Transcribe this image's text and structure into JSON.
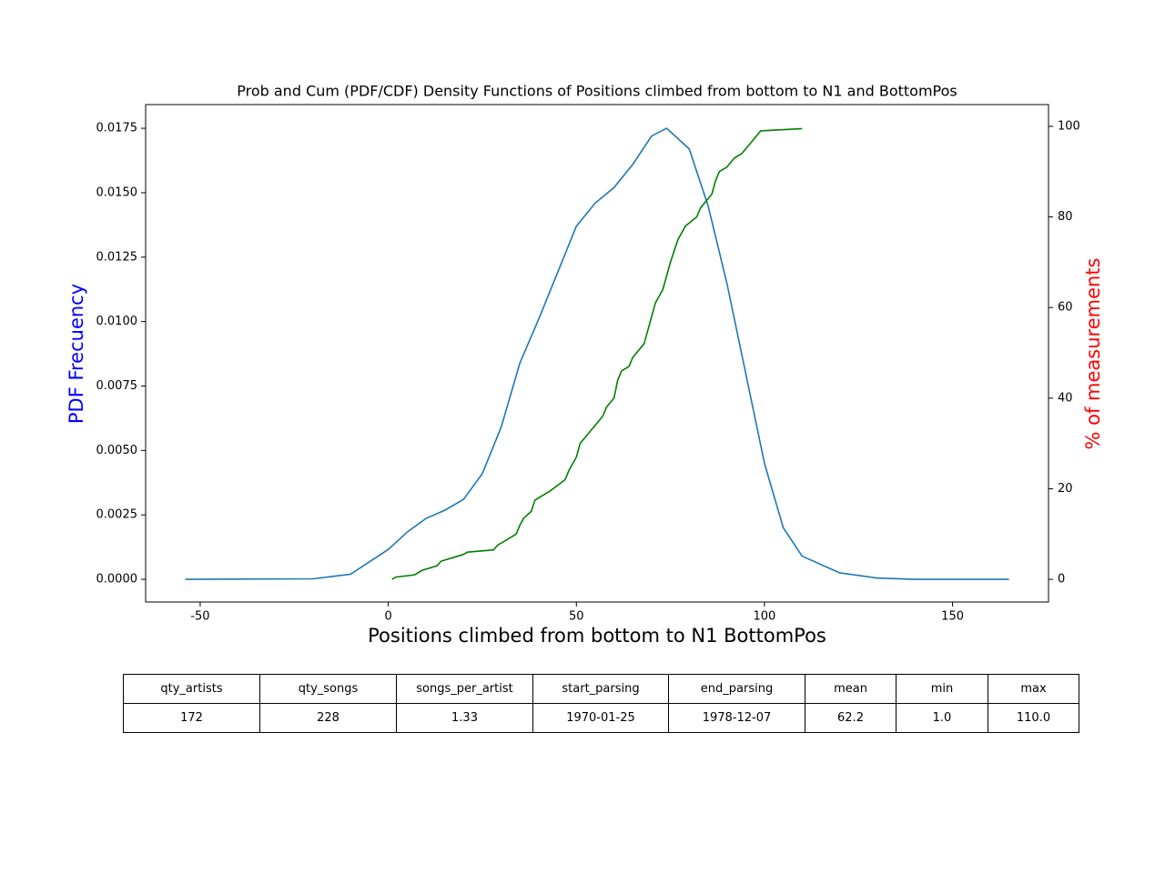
{
  "chart_data": {
    "type": "line",
    "title": "Prob and Cum (PDF/CDF) Density Functions of Positions climbed from bottom to N1 and BottomPos",
    "x_label": "Positions climbed from bottom to N1 BottomPos",
    "y_label": "PDF Frecuency",
    "y_label_color": "#0000ff",
    "y2_label": "% of measurements",
    "y2_label_color": "#ff0000",
    "xlim": [
      -64.5,
      175.5
    ],
    "xticks": [
      -50,
      0,
      50,
      100,
      150
    ],
    "ylim": [
      -0.00088,
      0.01842
    ],
    "yticks": [
      {
        "value": 0,
        "label": "0.0000"
      },
      {
        "value": 0.0025,
        "label": "0.0025"
      },
      {
        "value": 0.005,
        "label": "0.0050"
      },
      {
        "value": 0.0075,
        "label": "0.0075"
      },
      {
        "value": 0.01,
        "label": "0.0100"
      },
      {
        "value": 0.0125,
        "label": "0.0125"
      },
      {
        "value": 0.015,
        "label": "0.0150"
      },
      {
        "value": 0.0175,
        "label": "0.0175"
      }
    ],
    "y2lim": [
      -5,
      104.8
    ],
    "y2ticks": [
      0,
      20,
      40,
      60,
      80,
      100
    ],
    "series": [
      {
        "color": "#1f77b4",
        "x": [
          -54,
          -20,
          -10,
          0,
          5,
          10,
          15,
          20,
          25,
          30,
          35,
          40,
          45,
          50,
          55,
          60,
          65,
          70,
          74,
          80,
          85,
          90,
          95,
          100,
          105,
          110,
          120,
          130,
          140,
          165
        ],
        "values": [
          0,
          2e-05,
          0.0002,
          0.00116,
          0.00183,
          0.00236,
          0.00268,
          0.0031,
          0.0041,
          0.0059,
          0.0084,
          0.0101,
          0.0119,
          0.0137,
          0.0146,
          0.0152,
          0.0161,
          0.0172,
          0.0175,
          0.0167,
          0.0145,
          0.0115,
          0.008,
          0.0045,
          0.002,
          0.0009,
          0.00025,
          5e-05,
          0,
          0
        ]
      },
      {
        "color": "#008000",
        "axis": "y2",
        "x": [
          1,
          2,
          7,
          9,
          13,
          14,
          18,
          20,
          21,
          28,
          29,
          34,
          35,
          36,
          38,
          39,
          43,
          47,
          48,
          50,
          51,
          53,
          55,
          57,
          58,
          60,
          61,
          62,
          64,
          65,
          68,
          69,
          70,
          71,
          73,
          74,
          75,
          77,
          79,
          82,
          83,
          86,
          87,
          88,
          90,
          92,
          94,
          96,
          97,
          99,
          110
        ],
        "values": [
          0,
          0.5,
          1,
          2,
          3,
          4,
          5,
          5.5,
          6,
          6.5,
          7.5,
          10,
          12,
          13.5,
          15,
          17.5,
          19.5,
          22,
          24,
          27,
          30,
          32,
          34,
          36,
          38,
          40,
          44,
          46,
          47,
          49,
          52,
          55,
          58,
          61,
          64,
          67,
          70,
          75,
          78,
          80,
          82,
          85,
          88,
          90,
          91,
          93,
          94,
          96,
          97,
          99,
          99.5
        ]
      }
    ]
  },
  "table": {
    "header": [
      "qty_artists",
      "qty_songs",
      "songs_per_artist",
      "start_parsing",
      "end_parsing",
      "mean",
      "min",
      "max"
    ],
    "rows": [
      [
        "172",
        "228",
        "1.33",
        "1970-01-25",
        "1978-12-07",
        "62.2",
        "1.0",
        "110.0"
      ]
    ]
  }
}
